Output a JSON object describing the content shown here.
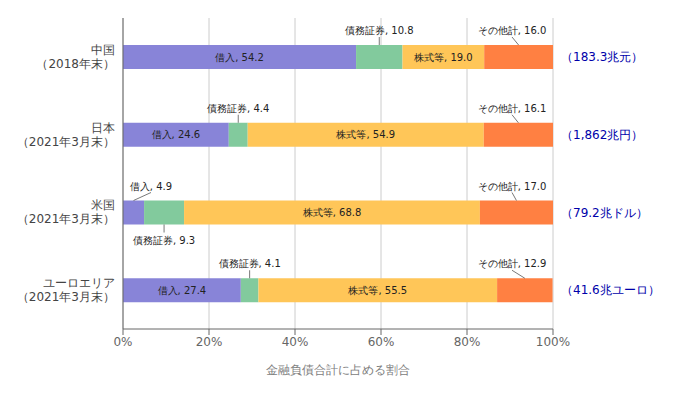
{
  "chart_data": {
    "type": "bar",
    "orientation": "horizontal",
    "stacked": true,
    "data_labels": true,
    "grid": true,
    "xlabel": "金融負債合計に占める割合",
    "categories": [
      "中国\n（2018年末）",
      "日本\n（2021年3月末）",
      "米国\n（2021年3月末）",
      "ユーロエリア\n（2021年3月末）"
    ],
    "series": [
      {
        "name": "借入",
        "color": "#8884d8",
        "values": [
          54.2,
          24.6,
          4.9,
          27.4
        ],
        "value_labels": [
          "借入, 54.2",
          "借入, 24.6",
          "借入, 4.9",
          "借入, 27.4"
        ]
      },
      {
        "name": "債務証券",
        "color": "#82ca9d",
        "values": [
          10.8,
          4.4,
          9.3,
          4.1
        ],
        "value_labels": [
          "債務証券, 10.8",
          "債務証券, 4.4",
          "債務証券, 9.3",
          "債務証券, 4.1"
        ]
      },
      {
        "name": "株式等",
        "color": "#ffc658",
        "values": [
          19.0,
          54.9,
          68.8,
          55.5
        ],
        "value_labels": [
          "株式等, 19.0",
          "株式等, 54.9",
          "株式等, 68.8",
          "株式等, 55.5"
        ]
      },
      {
        "name": "その他計",
        "color": "#ff8042",
        "values": [
          16.0,
          16.1,
          17.0,
          12.9
        ],
        "value_labels": [
          "その他計, 16.0",
          "その他計, 16.1",
          "その他計, 17.0",
          "その他計, 12.9"
        ]
      }
    ],
    "xlim": [
      0,
      100
    ],
    "xticks": [
      {
        "value": 0,
        "label": "0%"
      },
      {
        "value": 20,
        "label": "20%"
      },
      {
        "value": 40,
        "label": "40%"
      },
      {
        "value": 60,
        "label": "60%"
      },
      {
        "value": 80,
        "label": "80%"
      },
      {
        "value": 100,
        "label": "100%"
      }
    ],
    "annotations": [
      {
        "category": "中国\n（2018年末）",
        "text": "（183.3兆元）",
        "color": "#0000aa"
      },
      {
        "category": "日本\n（2021年3月末）",
        "text": "（1,862兆円）",
        "color": "#0000aa"
      },
      {
        "category": "米国\n（2021年3月末）",
        "text": "（79.2兆ドル）",
        "color": "#0000aa"
      },
      {
        "category": "ユーロエリア\n（2021年3月末）",
        "text": "（41.6兆ユーロ）",
        "color": "#0000aa"
      }
    ]
  }
}
